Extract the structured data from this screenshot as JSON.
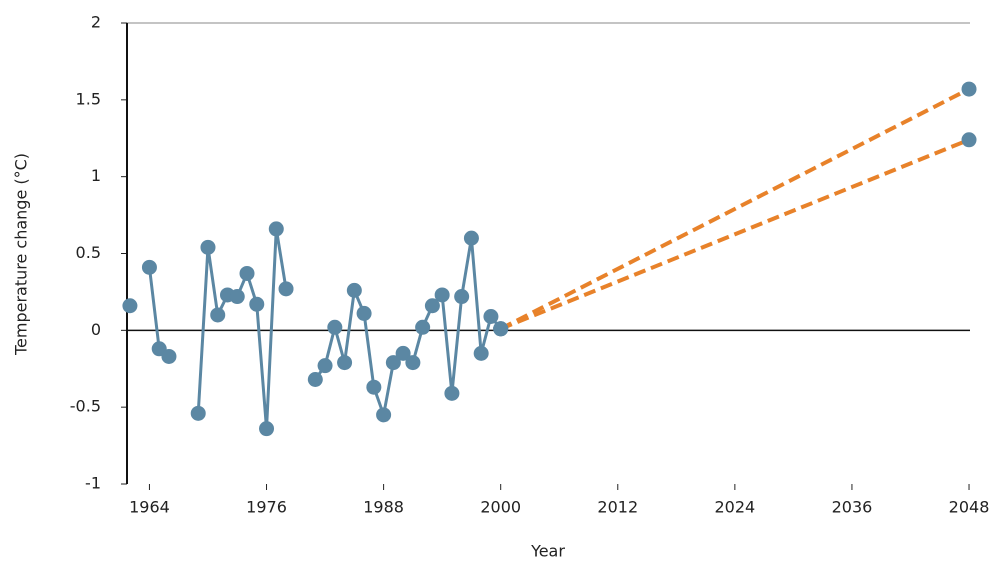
{
  "chart_data": {
    "type": "line",
    "x_label": "Year",
    "y_label": "Temperature change (°C)",
    "xlim": [
      1961.7,
      2048.1
    ],
    "xticks": [
      1964,
      1976,
      1988,
      2000,
      2012,
      2024,
      2036,
      2048
    ],
    "ylim": [
      -1,
      2
    ],
    "yticks": [
      -1,
      -0.5,
      0,
      0.5,
      1,
      1.5,
      2
    ],
    "series": [
      {
        "color": "#5b87a3",
        "dashed": false,
        "marker_color": "#5b87a3",
        "x": [
          1962,
          1963,
          1964,
          1965,
          1966,
          1967,
          1968,
          1969,
          1970,
          1971,
          1972,
          1973,
          1974,
          1975,
          1976,
          1977,
          1978,
          1979,
          1980,
          1981,
          1982,
          1983,
          1984,
          1985,
          1986,
          1987,
          1988,
          1989,
          1990,
          1991,
          1992,
          1993,
          1994,
          1995,
          1996,
          1997,
          1998,
          1999,
          2000
        ],
        "values": [
          0.16,
          null,
          0.41,
          -0.12,
          -0.17,
          null,
          null,
          -0.54,
          0.54,
          0.1,
          0.23,
          0.22,
          0.37,
          0.17,
          -0.64,
          0.66,
          0.27,
          null,
          null,
          -0.32,
          -0.23,
          0.02,
          -0.21,
          0.26,
          0.11,
          -0.37,
          -0.55,
          -0.21,
          -0.15,
          -0.21,
          0.02,
          0.16,
          0.23,
          -0.41,
          0.22,
          0.6,
          -0.15,
          0.09,
          0.01
        ]
      },
      {
        "color": "#e8822a",
        "dashed": true,
        "marker_color": "#5b87a3",
        "x": [
          2000,
          2048
        ],
        "values": [
          0.01,
          1.57
        ]
      },
      {
        "color": "#e8822a",
        "dashed": true,
        "marker_color": "#5b87a3",
        "x": [
          2000,
          2048
        ],
        "values": [
          0.01,
          1.24
        ]
      }
    ]
  }
}
